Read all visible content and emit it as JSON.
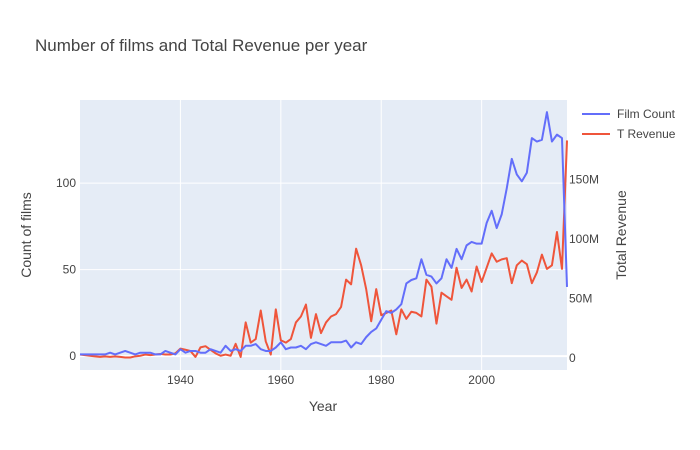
{
  "chart_data": {
    "type": "line",
    "title": "Number of films and Total Revenue per year",
    "xlabel": "Year",
    "ylabel": "Count of films",
    "y2label": "Total Revenue",
    "xlim": [
      1920,
      2017
    ],
    "ylim": [
      -8,
      148
    ],
    "y2lim": [
      -10000000,
      217000000
    ],
    "x_ticks": [
      1940,
      1960,
      1980,
      2000
    ],
    "y_ticks": [
      0,
      50,
      100
    ],
    "y_tick_labels": [
      "0",
      "50",
      "100"
    ],
    "y2_ticks": [
      0,
      50000000,
      100000000,
      150000000
    ],
    "y2_tick_labels": [
      "0",
      "50M",
      "100M",
      "150M"
    ],
    "grid": true,
    "legend_position": "top-right",
    "series": [
      {
        "name": "Film Count",
        "axis": "y",
        "color": "#636efa",
        "x": [
          1920,
          1921,
          1922,
          1923,
          1924,
          1925,
          1926,
          1927,
          1928,
          1929,
          1930,
          1931,
          1932,
          1933,
          1934,
          1935,
          1936,
          1937,
          1938,
          1939,
          1940,
          1941,
          1942,
          1943,
          1944,
          1945,
          1946,
          1947,
          1948,
          1949,
          1950,
          1951,
          1952,
          1953,
          1954,
          1955,
          1956,
          1957,
          1958,
          1959,
          1960,
          1961,
          1962,
          1963,
          1964,
          1965,
          1966,
          1967,
          1968,
          1969,
          1970,
          1971,
          1972,
          1973,
          1974,
          1975,
          1976,
          1977,
          1978,
          1979,
          1980,
          1981,
          1982,
          1983,
          1984,
          1985,
          1986,
          1987,
          1988,
          1989,
          1990,
          1991,
          1992,
          1993,
          1994,
          1995,
          1996,
          1997,
          1998,
          1999,
          2000,
          2001,
          2002,
          2003,
          2004,
          2005,
          2006,
          2007,
          2008,
          2009,
          2010,
          2011,
          2012,
          2013,
          2014,
          2015,
          2016,
          2017
        ],
        "values": [
          1,
          1,
          1,
          1,
          1,
          1,
          2,
          1,
          2,
          3,
          2,
          1,
          2,
          2,
          2,
          1,
          1,
          3,
          2,
          1,
          4,
          2,
          3,
          3,
          2,
          2,
          4,
          3,
          2,
          6,
          3,
          4,
          3,
          6,
          6,
          7,
          4,
          3,
          3,
          5,
          8,
          4,
          5,
          5,
          6,
          4,
          7,
          8,
          7,
          6,
          8,
          8,
          8,
          9,
          5,
          8,
          7,
          11,
          14,
          16,
          21,
          26,
          25,
          27,
          30,
          42,
          44,
          45,
          56,
          47,
          46,
          42,
          45,
          56,
          51,
          62,
          56,
          64,
          66,
          65,
          65,
          77,
          84,
          74,
          82,
          97,
          114,
          105,
          101,
          106,
          126,
          124,
          125,
          141,
          124,
          128,
          126,
          40
        ]
      },
      {
        "name": "T Revenue",
        "axis": "y2",
        "color": "#ef553b",
        "x": [
          1920,
          1921,
          1922,
          1923,
          1924,
          1925,
          1926,
          1927,
          1928,
          1929,
          1930,
          1931,
          1932,
          1933,
          1934,
          1935,
          1936,
          1937,
          1938,
          1939,
          1940,
          1941,
          1942,
          1943,
          1944,
          1945,
          1946,
          1947,
          1948,
          1949,
          1950,
          1951,
          1952,
          1953,
          1954,
          1955,
          1956,
          1957,
          1958,
          1959,
          1960,
          1961,
          1962,
          1963,
          1964,
          1965,
          1966,
          1967,
          1968,
          1969,
          1970,
          1971,
          1972,
          1973,
          1974,
          1975,
          1976,
          1977,
          1978,
          1979,
          1980,
          1981,
          1982,
          1983,
          1984,
          1985,
          1986,
          1987,
          1988,
          1989,
          1990,
          1991,
          1992,
          1993,
          1994,
          1995,
          1996,
          1997,
          1998,
          1999,
          2000,
          2001,
          2002,
          2003,
          2004,
          2005,
          2006,
          2007,
          2008,
          2009,
          2010,
          2011,
          2012,
          2013,
          2014,
          2015,
          2016,
          2017
        ],
        "values": [
          3000000,
          2500000,
          2000000,
          1500000,
          1000000,
          1500000,
          1000000,
          1500000,
          1000000,
          500000,
          500000,
          1500000,
          2000000,
          3000000,
          2500000,
          3000000,
          3500000,
          3000000,
          3000000,
          4000000,
          8000000,
          7000000,
          6000000,
          1000000,
          9000000,
          10000000,
          7000000,
          4000000,
          2000000,
          3000000,
          2000000,
          12000000,
          1000000,
          30000000,
          13000000,
          16000000,
          40000000,
          14000000,
          3000000,
          41000000,
          15000000,
          13000000,
          16000000,
          30000000,
          35000000,
          45000000,
          17000000,
          37000000,
          21000000,
          30000000,
          35000000,
          37000000,
          43000000,
          66000000,
          62000000,
          92000000,
          78000000,
          58000000,
          31000000,
          58000000,
          36000000,
          38000000,
          40000000,
          20000000,
          41000000,
          33000000,
          39000000,
          38000000,
          35000000,
          66000000,
          60000000,
          29000000,
          55000000,
          52000000,
          49000000,
          76000000,
          59000000,
          66000000,
          56000000,
          77000000,
          64000000,
          76000000,
          88000000,
          81000000,
          83000000,
          84000000,
          63000000,
          78000000,
          82000000,
          79000000,
          63000000,
          72000000,
          87000000,
          75000000,
          78000000,
          106000000,
          75000000,
          183000000
        ]
      }
    ]
  }
}
